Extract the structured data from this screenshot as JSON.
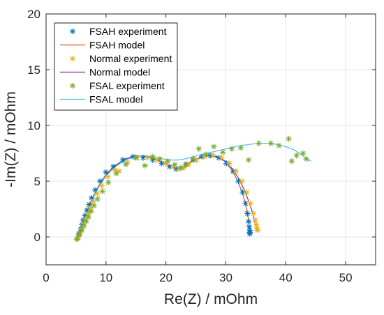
{
  "chart_data": {
    "type": "scatter",
    "title": "",
    "xlabel": "Re(Z) / mOhm",
    "ylabel": "-Im(Z) / mOhm",
    "xlim": [
      0,
      55
    ],
    "ylim": [
      -2.5,
      20
    ],
    "xticks": [
      0,
      10,
      20,
      30,
      40,
      50
    ],
    "yticks": [
      0,
      5,
      10,
      15,
      20
    ],
    "xtick_labels": [
      "0",
      "10",
      "20",
      "30",
      "40",
      "50"
    ],
    "ytick_labels": [
      "0",
      "5",
      "10",
      "15",
      "20"
    ],
    "grid": true,
    "legend_position": "top-left",
    "series": [
      {
        "name": "FSAH experiment",
        "kind": "markers",
        "color": "#0072BD",
        "x": [
          5.3,
          5.5,
          5.8,
          6.0,
          6.2,
          6.5,
          6.8,
          7.2,
          7.6,
          8.2,
          9.0,
          10.0,
          11.2,
          12.8,
          14.5,
          16.2,
          17.8,
          19.3,
          20.6,
          21.7,
          22.5,
          23.3,
          24.6,
          26.0,
          27.4,
          28.8,
          30.1,
          31.2,
          32.1,
          32.8,
          33.3,
          33.6,
          33.8,
          33.9,
          34.0,
          34.0,
          34.0
        ],
        "y": [
          -0.1,
          0.3,
          0.7,
          1.1,
          1.5,
          1.9,
          2.4,
          2.9,
          3.5,
          4.2,
          5.0,
          5.8,
          6.3,
          6.9,
          7.2,
          7.1,
          6.9,
          6.6,
          6.3,
          6.1,
          6.2,
          6.5,
          6.9,
          7.2,
          7.3,
          7.1,
          6.6,
          5.9,
          5.0,
          4.0,
          3.0,
          2.1,
          1.4,
          0.9,
          0.6,
          0.4,
          0.3
        ]
      },
      {
        "name": "FSAH model",
        "kind": "line",
        "color": "#D95319",
        "x": [
          5.3,
          5.7,
          6.3,
          7.0,
          7.8,
          8.8,
          10.0,
          11.5,
          13.2,
          15.0,
          16.8,
          18.5,
          20.0,
          21.3,
          22.3,
          23.2,
          24.3,
          25.6,
          27.0,
          28.4,
          29.8,
          31.0,
          32.0,
          32.8,
          33.4,
          33.8,
          34.1
        ],
        "y": [
          0.0,
          0.7,
          1.6,
          2.6,
          3.6,
          4.6,
          5.6,
          6.4,
          7.0,
          7.3,
          7.2,
          6.9,
          6.5,
          6.2,
          6.1,
          6.3,
          6.8,
          7.1,
          7.3,
          7.2,
          6.8,
          6.0,
          5.0,
          3.9,
          2.7,
          1.5,
          0.4
        ]
      },
      {
        "name": "Normal experiment",
        "kind": "markers",
        "color": "#EDB120",
        "x": [
          5.4,
          5.7,
          6.0,
          6.3,
          6.6,
          7.0,
          7.4,
          7.9,
          8.5,
          9.3,
          10.3,
          11.5,
          12.2,
          13.6,
          15.2,
          16.9,
          18.5,
          20.0,
          21.2,
          22.2,
          23.0,
          23.8,
          25.1,
          26.5,
          27.9,
          29.3,
          30.6,
          31.7,
          32.7,
          33.5,
          34.1,
          34.6,
          34.9,
          35.1,
          35.2,
          35.3
        ],
        "y": [
          -0.1,
          0.3,
          0.7,
          1.2,
          1.6,
          2.1,
          2.6,
          3.2,
          3.9,
          4.6,
          5.4,
          6.0,
          5.9,
          6.7,
          7.1,
          7.1,
          6.9,
          6.6,
          6.3,
          6.1,
          6.2,
          6.5,
          6.9,
          7.2,
          7.3,
          7.1,
          6.6,
          5.9,
          5.0,
          4.0,
          3.0,
          2.1,
          1.5,
          1.1,
          0.8,
          0.6
        ]
      },
      {
        "name": "Normal model",
        "kind": "line",
        "color": "#7E2F8E",
        "x": [
          5.4,
          5.8,
          6.4,
          7.1,
          7.9,
          8.9,
          10.1,
          11.6,
          13.3,
          15.1,
          16.9,
          18.6,
          20.1,
          21.4,
          22.4,
          23.3,
          24.4,
          25.7,
          27.1,
          28.5,
          29.9,
          31.1,
          32.2,
          33.1,
          33.9,
          34.5,
          34.9,
          35.2
        ],
        "y": [
          0.0,
          0.7,
          1.6,
          2.6,
          3.6,
          4.6,
          5.6,
          6.4,
          7.0,
          7.3,
          7.2,
          6.9,
          6.5,
          6.2,
          6.1,
          6.3,
          6.8,
          7.1,
          7.3,
          7.2,
          6.8,
          6.1,
          5.2,
          4.2,
          3.1,
          2.1,
          1.2,
          0.5
        ]
      },
      {
        "name": "FSAL experiment",
        "kind": "markers",
        "color": "#77AC30",
        "x": [
          5.1,
          5.5,
          5.9,
          6.3,
          6.7,
          7.1,
          7.5,
          8.0,
          8.6,
          9.4,
          10.4,
          11.7,
          13.3,
          15.0,
          16.5,
          17.8,
          19.0,
          20.3,
          21.5,
          22.5,
          23.4,
          24.5,
          25.5,
          26.7,
          28.0,
          29.5,
          31.0,
          32.5,
          33.8,
          35.5,
          37.5,
          38.9,
          40.5,
          41.0,
          41.8,
          42.9,
          43.4
        ],
        "y": [
          -0.2,
          0.2,
          0.6,
          1.0,
          1.4,
          1.8,
          2.3,
          2.8,
          3.4,
          4.1,
          4.9,
          5.7,
          6.5,
          7.1,
          6.4,
          7.2,
          7.0,
          6.8,
          6.5,
          6.2,
          6.5,
          7.0,
          7.9,
          7.4,
          8.1,
          7.6,
          7.9,
          8.0,
          6.9,
          8.4,
          8.4,
          8.2,
          8.8,
          6.8,
          7.3,
          7.5,
          7.0
        ]
      },
      {
        "name": "FSAL model",
        "kind": "line",
        "color": "#4DBEEE",
        "x": [
          5.1,
          5.6,
          6.2,
          6.9,
          7.7,
          8.7,
          9.9,
          11.3,
          12.9,
          14.6,
          16.3,
          18.0,
          19.5,
          20.8,
          22.0,
          23.2,
          24.5,
          26.0,
          27.6,
          29.2,
          30.8,
          32.4,
          34.0,
          35.5,
          37.0,
          38.5,
          40.0,
          41.4,
          42.6,
          43.5,
          44.2
        ],
        "y": [
          -0.2,
          0.5,
          1.4,
          2.4,
          3.4,
          4.4,
          5.4,
          6.2,
          6.8,
          7.2,
          7.3,
          7.2,
          7.0,
          6.9,
          6.9,
          7.0,
          7.2,
          7.4,
          7.6,
          7.8,
          8.0,
          8.2,
          8.3,
          8.4,
          8.4,
          8.3,
          8.1,
          7.8,
          7.4,
          7.0,
          6.8
        ]
      }
    ]
  }
}
